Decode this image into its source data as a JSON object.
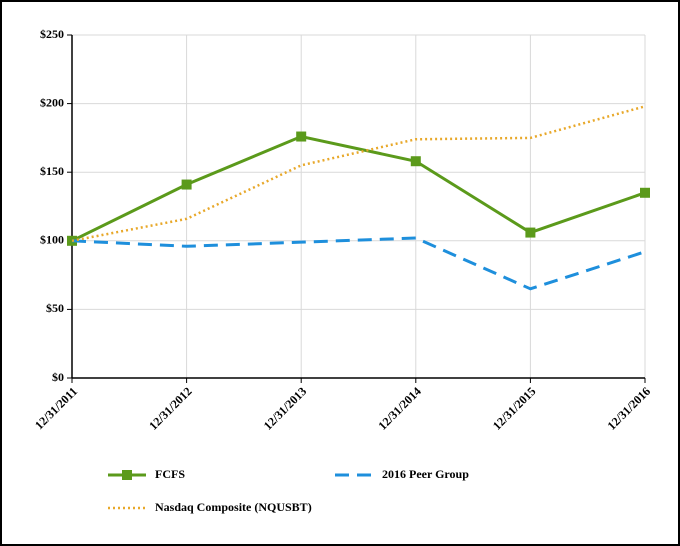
{
  "chart_data": {
    "type": "line",
    "categories": [
      "12/31/2011",
      "12/31/2012",
      "12/31/2013",
      "12/31/2014",
      "12/31/2015",
      "12/31/2016"
    ],
    "series": [
      {
        "name": "FCFS",
        "color": "#5b9a1b",
        "style": "solid",
        "marker": "square",
        "values": [
          100,
          141,
          176,
          158,
          106,
          135
        ]
      },
      {
        "name": "2016 Peer Group",
        "color": "#1e8fdc",
        "style": "dashed",
        "values": [
          100,
          96,
          99,
          102,
          65,
          92
        ]
      },
      {
        "name": "Nasdaq Composite (NQUSBT)",
        "color": "#e8a82a",
        "style": "dotted",
        "values": [
          100,
          116,
          155,
          174,
          175,
          198
        ]
      }
    ],
    "ylim": [
      0,
      250
    ],
    "yticks": [
      {
        "value": 0,
        "label": "$0"
      },
      {
        "value": 50,
        "label": "$50"
      },
      {
        "value": 100,
        "label": "$100"
      },
      {
        "value": 150,
        "label": "$150"
      },
      {
        "value": 200,
        "label": "$200"
      },
      {
        "value": 250,
        "label": "$250"
      }
    ],
    "grid": true
  }
}
